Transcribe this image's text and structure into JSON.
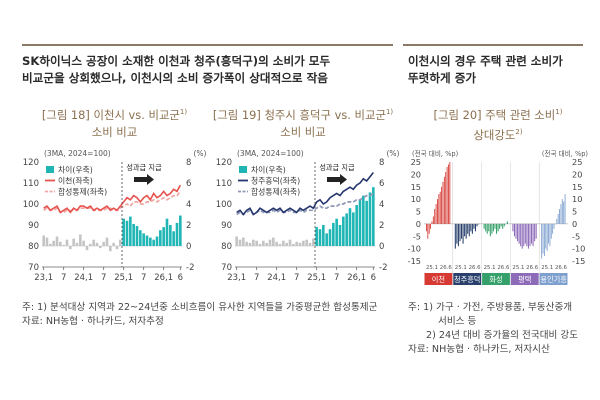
{
  "left_section": {
    "headline_line1": "SK하이닉스 공장이 소재한 이천과 청주(흥덕구)의 소비가 모두",
    "headline_line2": "비교군을 상회했으나, 이천시의 소비 증가폭이 상대적으로 작음",
    "notes": {
      "line1": "주: 1) 분석대상 지역과 22~24년중 소비흐름이 유사한 지역들을 가중평균한 합성통제군",
      "line2": "자료: NH농협 · 하나카드, 저자추정"
    }
  },
  "right_section": {
    "headline_line1": "이천시의 경우 주택 관련 소비가",
    "headline_line2": "뚜렷하게 증가",
    "notes": {
      "line1": "주: 1) 가구 · 가전, 주방용품, 부동산중개",
      "line2": "서비스 등",
      "line3": "2) 24년 대비 증가율의 전국대비 강도",
      "line4": "자료: NH농협 · 하나카드, 저자시산"
    }
  },
  "colors": {
    "rule": "#8a7a65",
    "title_brown": "#8b6f4e",
    "teal": "#1fb5b5",
    "gray_bar": "#c4c4c4",
    "icheon_red": "#e8524d",
    "synthetic_light": "#f0a7a2",
    "cheongju_navy": "#26366e",
    "synthetic_gray": "#8e98b6",
    "panel_red": "#d63a33",
    "panel_navy": "#28406b",
    "panel_green": "#35a06a",
    "panel_purple": "#8d6bb8",
    "panel_lightblue": "#7ea0cf"
  },
  "chart_data": [
    {
      "id": "fig18",
      "type": "line",
      "title_line1": "[그림 18] 이천시 vs. 비교군",
      "title_sup": "1)",
      "title_line2": "소비 비교",
      "subtitle": "(3MA, 2024=100)",
      "right_unit": "(%)",
      "annotation": "성과급 지급",
      "x": [
        "23.1",
        "23.2",
        "23.3",
        "23.4",
        "23.5",
        "23.6",
        "23.7",
        "23.8",
        "23.9",
        "23.10",
        "23.11",
        "23.12",
        "24.1",
        "24.2",
        "24.3",
        "24.4",
        "24.5",
        "24.6",
        "24.7",
        "24.8",
        "24.9",
        "24.10",
        "24.11",
        "24.12",
        "25.1",
        "25.2",
        "25.3",
        "25.4",
        "25.5",
        "25.6",
        "25.7",
        "25.8",
        "25.9",
        "25.10",
        "25.11",
        "25.12",
        "26.1",
        "26.2",
        "26.3",
        "26.4",
        "26.5",
        "26.6"
      ],
      "x_tick_labels": [
        "23,1",
        "7",
        "24,1",
        "7",
        "25,1",
        "7",
        "26,1",
        "6"
      ],
      "left_axis": {
        "ticks": [
          70,
          80,
          90,
          100,
          110,
          120
        ],
        "ylim": [
          70,
          120
        ]
      },
      "right_axis": {
        "ticks": [
          -2,
          0,
          2,
          4,
          6,
          8
        ],
        "ylim": [
          -2,
          8
        ]
      },
      "legend": [
        "차이(우축)",
        "이천(좌축)",
        "합성통제(좌축)"
      ],
      "series": [
        {
          "name": "차이(우축)",
          "axis": "right",
          "values": [
            1.0,
            0.8,
            0.2,
            0.5,
            0.9,
            0.4,
            0.1,
            0.6,
            -0.3,
            0.7,
            0.3,
            1.1,
            0.5,
            -0.4,
            0.2,
            0.6,
            0.3,
            -0.2,
            0.4,
            0.8,
            -0.5,
            0.3,
            -0.3,
            0.6,
            2.6,
            2.4,
            2.8,
            2.1,
            1.9,
            1.5,
            1.2,
            1.0,
            0.8,
            0.6,
            0.9,
            1.5,
            1.8,
            2.6,
            2.0,
            1.4,
            2.2,
            2.9
          ]
        },
        {
          "name": "이천(좌축)",
          "axis": "left",
          "values": [
            98,
            99,
            97,
            98,
            99,
            96,
            97,
            98,
            96,
            98,
            97,
            99,
            99,
            98,
            99,
            97,
            98,
            97,
            98,
            99,
            97,
            98,
            97,
            99,
            101,
            103,
            102,
            104,
            103,
            101,
            103,
            104,
            102,
            105,
            103,
            104,
            106,
            104,
            105,
            107,
            106,
            109
          ]
        },
        {
          "name": "합성통제(좌축)",
          "axis": "left",
          "values": [
            97,
            98,
            97,
            97,
            98,
            96,
            96,
            97,
            97,
            97,
            97,
            98,
            98,
            98,
            98,
            97,
            97,
            97,
            97,
            98,
            98,
            97,
            97,
            98,
            99,
            100,
            99,
            101,
            101,
            100,
            100,
            101,
            101,
            102,
            101,
            102,
            103,
            102,
            103,
            104,
            104,
            106
          ]
        }
      ]
    },
    {
      "id": "fig19",
      "type": "line",
      "title_line1": "[그림 19] 청주시 흥덕구 vs. 비교군",
      "title_sup": "1)",
      "title_line2": "소비 비교",
      "subtitle": "(3MA, 2024=100)",
      "right_unit": "(%)",
      "annotation": "성과급 지급",
      "x": [
        "23.1",
        "23.2",
        "23.3",
        "23.4",
        "23.5",
        "23.6",
        "23.7",
        "23.8",
        "23.9",
        "23.10",
        "23.11",
        "23.12",
        "24.1",
        "24.2",
        "24.3",
        "24.4",
        "24.5",
        "24.6",
        "24.7",
        "24.8",
        "24.9",
        "24.10",
        "24.11",
        "24.12",
        "25.1",
        "25.2",
        "25.3",
        "25.4",
        "25.5",
        "25.6",
        "25.7",
        "25.8",
        "25.9",
        "25.10",
        "25.11",
        "25.12",
        "26.1",
        "26.2",
        "26.3",
        "26.4",
        "26.5",
        "26.6"
      ],
      "x_tick_labels": [
        "23,1",
        "7",
        "24,1",
        "7",
        "25,1",
        "7",
        "26,1",
        "6"
      ],
      "left_axis": {
        "ticks": [
          70,
          80,
          90,
          100,
          110,
          120
        ],
        "ylim": [
          70,
          120
        ]
      },
      "right_axis": {
        "ticks": [
          -2,
          0,
          2,
          4,
          6,
          8
        ],
        "ylim": [
          -2,
          8
        ]
      },
      "legend": [
        "차이(우축)",
        "청주흥덕(좌축)",
        "합성통제(좌축)"
      ],
      "series": [
        {
          "name": "차이(우축)",
          "axis": "right",
          "values": [
            0.9,
            0.6,
            0.8,
            0.4,
            0.3,
            0.6,
            0.5,
            0.2,
            0.5,
            0.3,
            0.6,
            0.8,
            0.4,
            0.2,
            0.5,
            0.3,
            0.6,
            0.2,
            0.4,
            0.3,
            0.5,
            0.6,
            0.3,
            0.7,
            1.8,
            1.6,
            2.0,
            1.2,
            1.6,
            2.2,
            2.6,
            2.0,
            2.8,
            3.1,
            3.6,
            3.2,
            3.9,
            4.4,
            4.8,
            4.3,
            5.1,
            5.6
          ]
        },
        {
          "name": "청주흥덕(좌축)",
          "axis": "left",
          "values": [
            96,
            97,
            95,
            97,
            98,
            95,
            96,
            98,
            97,
            96,
            97,
            98,
            97,
            98,
            96,
            97,
            98,
            97,
            96,
            98,
            97,
            98,
            99,
            98,
            101,
            102,
            100,
            101,
            103,
            104,
            105,
            104,
            106,
            107,
            108,
            107,
            109,
            110,
            112,
            111,
            113,
            115
          ]
        },
        {
          "name": "합성통제(좌축)",
          "axis": "left",
          "values": [
            95,
            96,
            95,
            96,
            97,
            95,
            96,
            97,
            96,
            96,
            96,
            97,
            96,
            97,
            96,
            96,
            97,
            96,
            96,
            97,
            96,
            97,
            97,
            97,
            98,
            99,
            98,
            98,
            99,
            99,
            99,
            100,
            100,
            101,
            101,
            101,
            102,
            102,
            103,
            104,
            104,
            105
          ]
        }
      ]
    },
    {
      "id": "fig20",
      "type": "bar",
      "title_line1": "[그림 20] 주택 관련 소비",
      "title_sup": "1)",
      "title_line2": "상대강도",
      "title_sup2": "2)",
      "left_unit": "(전국 대비, %p)",
      "right_unit": "(전국 대비, %p)",
      "left_axis": {
        "ticks": [
          -15,
          -10,
          -5,
          0,
          5,
          10,
          15,
          20,
          25
        ],
        "ylim": [
          -15,
          25
        ]
      },
      "right_axis": {
        "ticks": [
          -15,
          -10,
          -5,
          0,
          5,
          10,
          15,
          20,
          25
        ],
        "ylim": [
          -15,
          25
        ]
      },
      "period_labels": [
        "25.1",
        "26.6",
        "25.1",
        "26.6",
        "25.1",
        "26.6",
        "25.1",
        "26.6",
        "25.1",
        "26.6"
      ],
      "groups": [
        {
          "name": "이천",
          "color": "#d63a33",
          "values": [
            -3,
            -6,
            -4,
            -2,
            1,
            3,
            6,
            8,
            10,
            12,
            13,
            15,
            17,
            19,
            21,
            23,
            24,
            25
          ]
        },
        {
          "name": "청주흥덕",
          "color": "#28406b",
          "values": [
            -10,
            -8,
            -9,
            -7,
            -6,
            -8,
            -5,
            -6,
            -4,
            -5,
            -3,
            -4,
            -2,
            -3,
            -1,
            0
          ]
        },
        {
          "name": "화성",
          "color": "#35a06a",
          "values": [
            -2,
            -3,
            -4,
            -3,
            -5,
            -4,
            -3,
            -2,
            -4,
            -3,
            -2,
            -1,
            -2,
            -1,
            0,
            1
          ]
        },
        {
          "name": "평택",
          "color": "#8d6bb8",
          "values": [
            -3,
            -5,
            -6,
            -7,
            -8,
            -9,
            -10,
            -9,
            -8,
            -9,
            -10,
            -9,
            -8,
            -9,
            -7,
            -6
          ]
        },
        {
          "name": "용인기흥",
          "color": "#7ea0cf",
          "values": [
            -14,
            -12,
            -13,
            -10,
            -11,
            -8,
            -9,
            -6,
            -4,
            -2,
            0,
            2,
            4,
            6,
            8,
            10,
            9,
            12
          ]
        }
      ]
    }
  ]
}
